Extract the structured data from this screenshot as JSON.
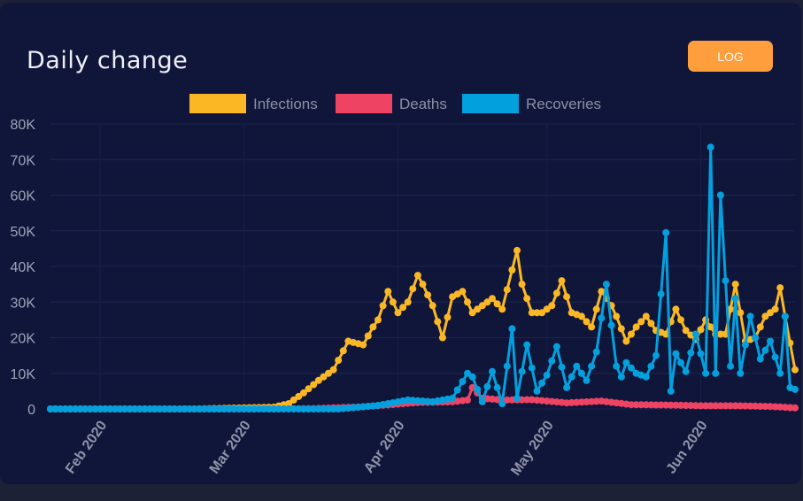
{
  "card": {
    "title": "Daily change",
    "log_button": "LOG"
  },
  "colors": {
    "infections": "#fbb824",
    "deaths": "#ef4364",
    "recoveries": "#03a0de",
    "background": "#10163a"
  },
  "chart_data": {
    "type": "line",
    "title": "Daily change",
    "xlabel": "",
    "ylabel": "",
    "ylim": [
      0,
      80000
    ],
    "y_ticks": [
      0,
      10000,
      20000,
      30000,
      40000,
      50000,
      60000,
      70000,
      80000
    ],
    "y_tick_labels": [
      "0",
      "10K",
      "20K",
      "30K",
      "40K",
      "50K",
      "60K",
      "70K",
      "80K"
    ],
    "x_start": "2020-01-22",
    "x_end": "2020-06-20",
    "x_ticks": [
      "2020-02-01",
      "2020-03-01",
      "2020-04-01",
      "2020-05-01",
      "2020-06-01"
    ],
    "x_tick_labels": [
      "Feb 2020",
      "Mar 2020",
      "Apr 2020",
      "May 2020",
      "Jun 2020"
    ],
    "legend_position": "top-center",
    "series": [
      {
        "name": "Infections",
        "key": "infections",
        "dates": [
          "2020-01-22",
          "2020-02-20",
          "2020-03-07",
          "2020-03-10",
          "2020-03-13",
          "2020-03-16",
          "2020-03-19",
          "2020-03-22",
          "2020-03-25",
          "2020-03-27",
          "2020-03-28",
          "2020-03-30",
          "2020-04-01",
          "2020-04-03",
          "2020-04-05",
          "2020-04-06",
          "2020-04-08",
          "2020-04-10",
          "2020-04-12",
          "2020-04-14",
          "2020-04-16",
          "2020-04-18",
          "2020-04-20",
          "2020-04-22",
          "2020-04-25",
          "2020-04-26",
          "2020-04-28",
          "2020-04-30",
          "2020-05-02",
          "2020-05-04",
          "2020-05-06",
          "2020-05-08",
          "2020-05-10",
          "2020-05-12",
          "2020-05-14",
          "2020-05-15",
          "2020-05-17",
          "2020-05-19",
          "2020-05-21",
          "2020-05-23",
          "2020-05-25",
          "2020-05-27",
          "2020-05-29",
          "2020-05-31",
          "2020-06-02",
          "2020-06-04",
          "2020-06-06",
          "2020-06-08",
          "2020-06-10",
          "2020-06-12",
          "2020-06-14",
          "2020-06-16",
          "2020-06-17",
          "2020-06-18",
          "2020-06-20"
        ],
        "values": [
          0,
          0,
          500,
          1500,
          4500,
          8000,
          11000,
          19000,
          18000,
          23000,
          25000,
          33000,
          27000,
          30000,
          37500,
          35000,
          29000,
          20000,
          31500,
          33000,
          27000,
          29000,
          31000,
          28000,
          44500,
          35000,
          27000,
          27000,
          29000,
          36000,
          27000,
          26000,
          23000,
          33000,
          29000,
          26000,
          19000,
          23000,
          26000,
          22000,
          21000,
          28000,
          22000,
          19500,
          25000,
          21000,
          21000,
          35000,
          19000,
          20000,
          26000,
          28000,
          34000,
          26000,
          11000
        ]
      },
      {
        "name": "Deaths",
        "key": "deaths",
        "dates": [
          "2020-01-22",
          "2020-03-01",
          "2020-03-15",
          "2020-03-25",
          "2020-04-05",
          "2020-04-12",
          "2020-04-15",
          "2020-04-16",
          "2020-04-18",
          "2020-04-22",
          "2020-04-28",
          "2020-05-05",
          "2020-05-12",
          "2020-05-18",
          "2020-05-25",
          "2020-06-01",
          "2020-06-08",
          "2020-06-15",
          "2020-06-20"
        ],
        "values": [
          0,
          0,
          100,
          600,
          1800,
          2000,
          2500,
          6000,
          3000,
          2500,
          2600,
          1700,
          2200,
          1200,
          1100,
          900,
          900,
          700,
          300
        ]
      },
      {
        "name": "Recoveries",
        "key": "recoveries",
        "dates": [
          "2020-01-22",
          "2020-03-20",
          "2020-03-28",
          "2020-04-03",
          "2020-04-08",
          "2020-04-12",
          "2020-04-15",
          "2020-04-16",
          "2020-04-18",
          "2020-04-20",
          "2020-04-22",
          "2020-04-24",
          "2020-04-25",
          "2020-04-27",
          "2020-04-29",
          "2020-05-01",
          "2020-05-03",
          "2020-05-05",
          "2020-05-07",
          "2020-05-09",
          "2020-05-11",
          "2020-05-13",
          "2020-05-15",
          "2020-05-16",
          "2020-05-17",
          "2020-05-19",
          "2020-05-21",
          "2020-05-23",
          "2020-05-25",
          "2020-05-26",
          "2020-05-27",
          "2020-05-29",
          "2020-05-31",
          "2020-06-02",
          "2020-06-03",
          "2020-06-04",
          "2020-06-05",
          "2020-06-07",
          "2020-06-08",
          "2020-06-09",
          "2020-06-11",
          "2020-06-13",
          "2020-06-15",
          "2020-06-17",
          "2020-06-18",
          "2020-06-19",
          "2020-06-20"
        ],
        "values": [
          0,
          0,
          1000,
          2500,
          2000,
          3000,
          10000,
          9000,
          2000,
          10500,
          1500,
          22500,
          3000,
          18000,
          5000,
          9500,
          17500,
          6000,
          12000,
          8000,
          16000,
          35000,
          12000,
          9000,
          13000,
          10000,
          9000,
          15000,
          49500,
          5000,
          15500,
          10500,
          21000,
          10000,
          73500,
          10000,
          60000,
          12000,
          31000,
          10000,
          26000,
          14000,
          19000,
          10000,
          26000,
          6000,
          5500
        ]
      }
    ]
  }
}
